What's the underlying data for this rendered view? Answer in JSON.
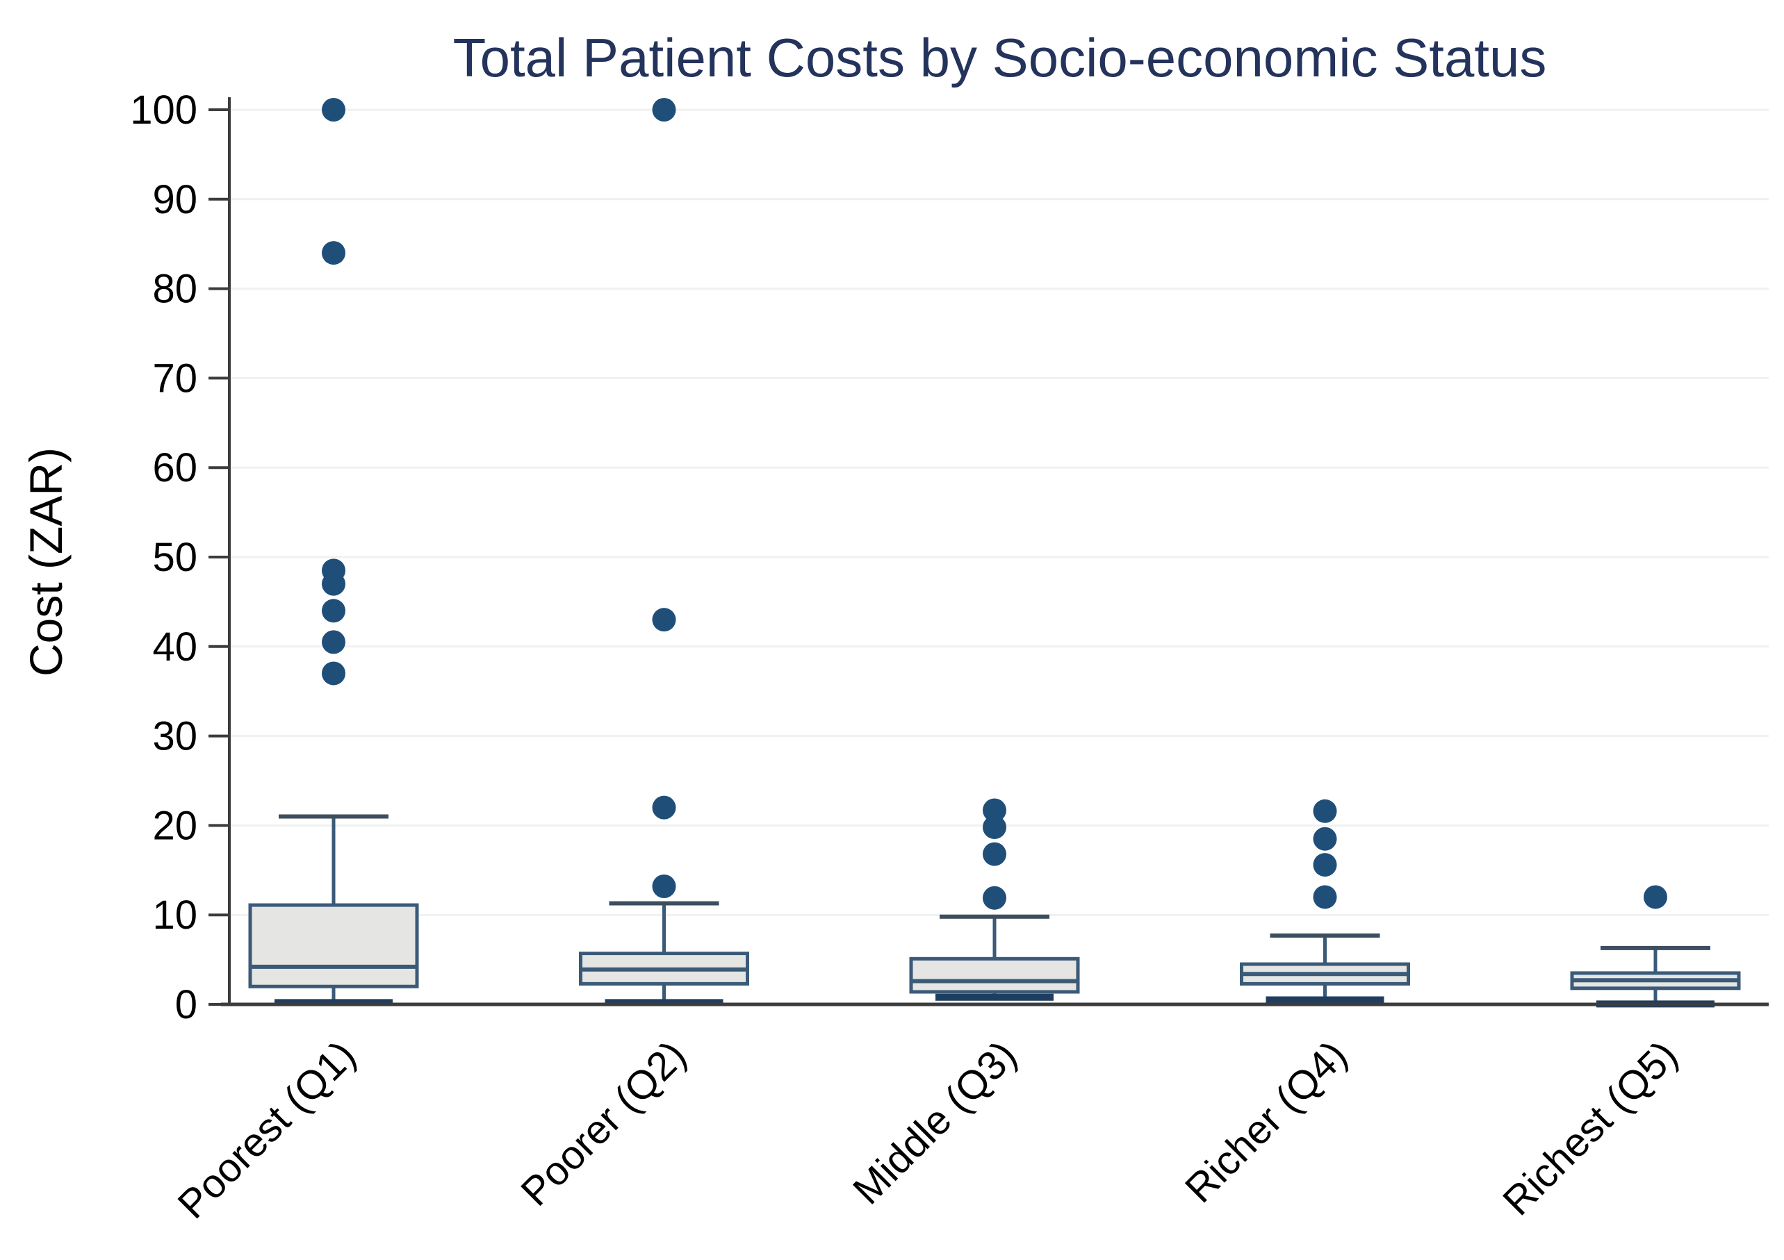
{
  "chart": {
    "title": "Total Patient Costs by Socio-economic Status",
    "ylabel": "Cost (ZAR)"
  },
  "chart_data": {
    "type": "boxplot",
    "title": "Total Patient Costs by Socio-economic Status",
    "xlabel": "",
    "ylabel": "Cost (ZAR)",
    "ylim": [
      0,
      100
    ],
    "yticks": [
      0,
      10,
      20,
      30,
      40,
      50,
      60,
      70,
      80,
      90,
      100
    ],
    "grid": "horizontal-light",
    "legend": "none",
    "categories": [
      "Poorest (Q1)",
      "Poorer (Q2)",
      "Middle (Q3)",
      "Richer (Q4)",
      "Richest (Q5)"
    ],
    "series": [
      {
        "name": "Poorest (Q1)",
        "whisker_low": 0.2,
        "q1": 2.0,
        "median": 4.2,
        "q3": 11.1,
        "whisker_high": 21.0,
        "outliers": [
          100,
          84,
          48.5,
          47,
          44,
          40.5,
          37
        ]
      },
      {
        "name": "Poorer (Q2)",
        "whisker_low": 0.2,
        "q1": 2.3,
        "median": 3.9,
        "q3": 5.7,
        "whisker_high": 11.3,
        "outliers": [
          100,
          43,
          22,
          13.2
        ]
      },
      {
        "name": "Middle (Q3)",
        "whisker_low": 0.8,
        "q1": 1.4,
        "median": 2.6,
        "q3": 5.1,
        "whisker_high": 9.8,
        "outliers": [
          21.7,
          19.8,
          16.8,
          11.9
        ]
      },
      {
        "name": "Richer (Q4)",
        "whisker_low": 0.5,
        "q1": 2.3,
        "median": 3.4,
        "q3": 4.5,
        "whisker_high": 7.7,
        "outliers": [
          21.6,
          18.5,
          15.6,
          12
        ]
      },
      {
        "name": "Richest (Q5)",
        "whisker_low": 0.05,
        "q1": 1.8,
        "median": 2.7,
        "q3": 3.5,
        "whisker_high": 6.3,
        "outliers": [
          12
        ]
      }
    ],
    "colors": {
      "title": "#24335C",
      "box_fill": "#E5E6E3",
      "box_border": "#3A5A78",
      "median_line": "#3A5A78",
      "whisker_line": "#3A5A78",
      "whisker_cap_upper": "#3D4E5E",
      "whisker_cap_lower": "#1F3E5F",
      "outlier_dot": "#1F4E79",
      "gridline": "#EFF1F1",
      "axis_line": "#3C3C3C",
      "tick_label": "#000000"
    }
  }
}
